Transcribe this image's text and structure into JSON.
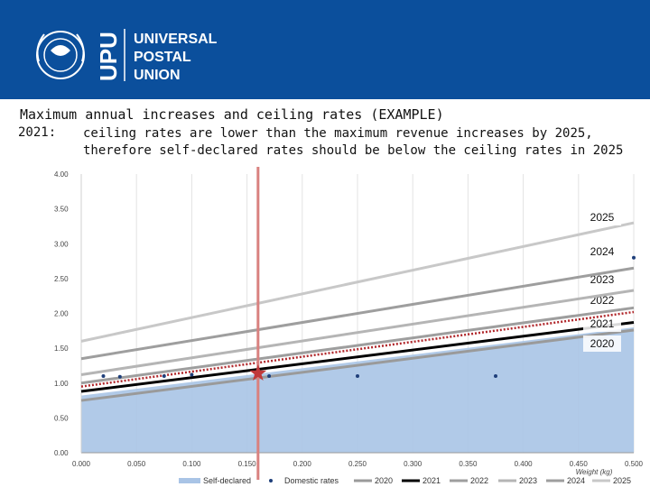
{
  "org": {
    "abbr": "UPU",
    "name_lines": [
      "UNIVERSAL",
      "POSTAL",
      "UNION"
    ]
  },
  "slide": {
    "title": "Maximum annual increases and ceiling rates (EXAMPLE)",
    "year_label": "2021:",
    "subtitle": "ceiling rates are lower than the maximum revenue increases by 2025, therefore self-declared rates should be below the ceiling rates in 2025"
  },
  "colors": {
    "header_bg": "#0b4f9c",
    "area_fill": "#a9c4e6",
    "marker_line": "#d9817f",
    "star": "#c0393b",
    "domestic": "#1f3f7a",
    "dotted": "#b0262a"
  },
  "chart_data": {
    "type": "line",
    "xlabel": "Weight (kg)",
    "ylabel": "",
    "xlim": [
      0,
      0.5
    ],
    "ylim": [
      0,
      4
    ],
    "xticks": [
      "0.000",
      "0.050",
      "0.100",
      "0.150",
      "0.200",
      "0.250",
      "0.300",
      "0.350",
      "0.400",
      "0.450",
      "0.500"
    ],
    "yticks": [
      "0.00",
      "0.50",
      "1.00",
      "1.50",
      "2.00",
      "2.50",
      "3.00",
      "3.50",
      "4.00"
    ],
    "grid": "vertical",
    "legend_position": "bottom",
    "self_declared": {
      "name": "Self-declared",
      "x": [
        0,
        0.5
      ],
      "y": [
        0.82,
        1.8
      ]
    },
    "domestic_rates": {
      "name": "Domestic rates",
      "x": [
        0.02,
        0.035,
        0.075,
        0.1,
        0.17,
        0.25,
        0.375,
        0.5
      ],
      "y": [
        1.1,
        1.09,
        1.1,
        1.12,
        1.1,
        1.1,
        1.1,
        2.8
      ]
    },
    "ceiling_lines": [
      {
        "name": "2020",
        "label": "2020",
        "x": [
          0,
          0.5
        ],
        "y": [
          0.75,
          1.76
        ]
      },
      {
        "name": "2021",
        "label": "2021",
        "x": [
          0,
          0.5
        ],
        "y": [
          0.88,
          1.87
        ]
      },
      {
        "name": "2022",
        "label": "2022",
        "x": [
          0,
          0.5
        ],
        "y": [
          1.0,
          2.08
        ]
      },
      {
        "name": "2023",
        "label": "2023",
        "x": [
          0,
          0.5
        ],
        "y": [
          1.12,
          2.33
        ]
      },
      {
        "name": "2024",
        "label": "2024",
        "x": [
          0,
          0.5
        ],
        "y": [
          1.35,
          2.65
        ]
      },
      {
        "name": "2025",
        "label": "2025",
        "x": [
          0,
          0.5
        ],
        "y": [
          1.6,
          3.3
        ]
      }
    ],
    "max_increase_line": {
      "x": [
        0,
        0.5
      ],
      "y": [
        0.95,
        2.02
      ]
    },
    "marker_weight": 0.16,
    "star_point": {
      "x": 0.16,
      "y": 1.14
    },
    "legend": [
      "Self-declared",
      "Domestic rates",
      "2020",
      "2021",
      "2022",
      "2023",
      "2024",
      "2025"
    ]
  }
}
